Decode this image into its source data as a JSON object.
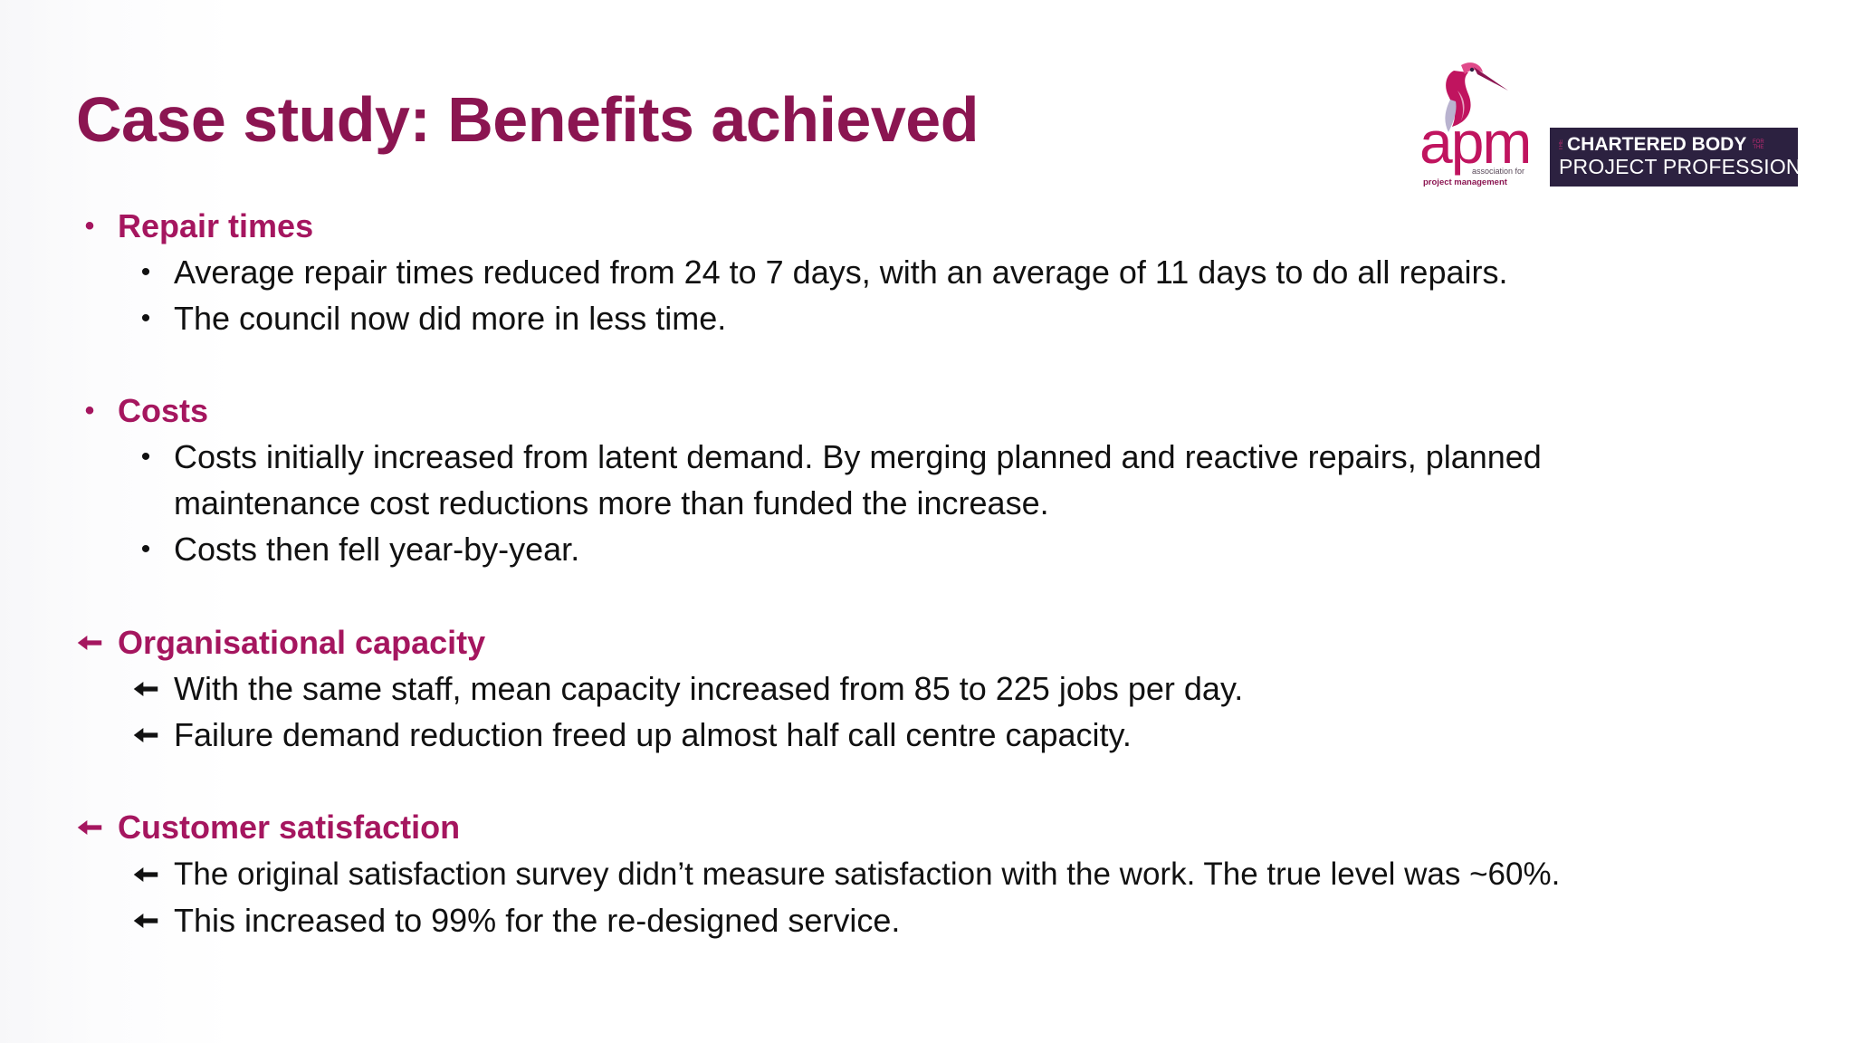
{
  "slide": {
    "title": "Case study: Benefits achieved"
  },
  "logo": {
    "apm_word": "apm",
    "assoc_line1": "association for",
    "assoc_line2": "project management",
    "chartered_prefix": "THE",
    "chartered_line1": "CHARTERED BODY",
    "chartered_suffix": "FOR THE",
    "chartered_line2": "PROJECT PROFESSION"
  },
  "sections": [
    {
      "heading": "Repair times",
      "bullet": "dot",
      "items": [
        "Average repair times reduced from 24 to 7 days, with an average of 11 days to do all repairs.",
        "The council now did more in less time."
      ]
    },
    {
      "heading": "Costs",
      "bullet": "dot",
      "items": [
        "Costs initially increased from latent demand. By merging planned and reactive repairs, planned",
        "maintenance cost reductions more than funded the increase.",
        "Costs then fell year-by-year."
      ]
    },
    {
      "heading": "Organisational capacity",
      "bullet": "arrow",
      "items": [
        "With the same staff, mean capacity increased from 85 to 225 jobs per day.",
        "Failure demand reduction freed up almost half call centre capacity."
      ]
    },
    {
      "heading": "Customer satisfaction",
      "bullet": "arrow",
      "items": [
        "The original satisfaction survey didn’t measure satisfaction with the work. The true level was ~60%.",
        "This increased to 99% for the re-designed service."
      ]
    }
  ],
  "colors": {
    "title": "#8b1551",
    "heading": "#a5165f",
    "body_text": "#111111",
    "brand_magenta": "#c0145f",
    "chartered_bg": "#2c2140"
  }
}
